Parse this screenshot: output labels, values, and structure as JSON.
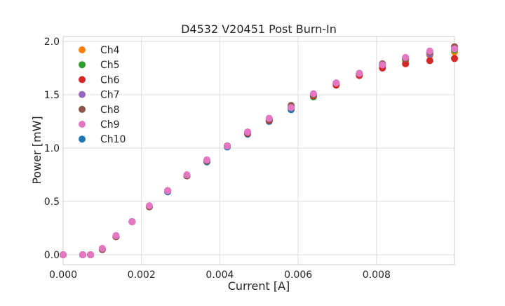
{
  "chart_data": {
    "type": "scatter",
    "title": "D4532 V20451 Post Burn-In",
    "xlabel": "Current [A]",
    "ylabel": "Power [mW]",
    "xlim": [
      0,
      0.00999
    ],
    "ylim": [
      -0.092,
      2.046
    ],
    "grid": true,
    "legend_placement": "top-left",
    "x_ticks": [
      0,
      0.002,
      0.004,
      0.006,
      0.008
    ],
    "x_tick_labels": [
      "0.000",
      "0.002",
      "0.004",
      "0.006",
      "0.008"
    ],
    "y_ticks": [
      0,
      0.5,
      1.0,
      1.5,
      2.0
    ],
    "y_tick_labels": [
      "0.0",
      "0.5",
      "1.0",
      "1.5",
      "2.0"
    ],
    "x": [
      0,
      0.0005,
      0.0007,
      0.001,
      0.00135,
      0.00176,
      0.0022,
      0.00267,
      0.00316,
      0.00367,
      0.00419,
      0.00471,
      0.00526,
      0.00582,
      0.00639,
      0.00697,
      0.00756,
      0.00815,
      0.00874,
      0.00936,
      0.00999
    ],
    "series": [
      {
        "name": "Ch4",
        "color": "#ff7f0e",
        "values": [
          0,
          0,
          0,
          0.05,
          0.17,
          0.31,
          0.45,
          0.6,
          0.74,
          0.88,
          1.02,
          1.14,
          1.26,
          1.38,
          1.49,
          1.6,
          1.69,
          1.77,
          1.82,
          1.87,
          1.9
        ]
      },
      {
        "name": "Ch5",
        "color": "#2ca02c",
        "values": [
          0,
          0,
          0,
          0.05,
          0.17,
          0.31,
          0.45,
          0.6,
          0.74,
          0.88,
          1.02,
          1.14,
          1.26,
          1.39,
          1.48,
          1.6,
          1.69,
          1.77,
          1.83,
          1.88,
          1.92
        ]
      },
      {
        "name": "Ch6",
        "color": "#d62728",
        "values": [
          0,
          0,
          0,
          0.05,
          0.17,
          0.31,
          0.45,
          0.6,
          0.74,
          0.88,
          1.02,
          1.14,
          1.26,
          1.38,
          1.49,
          1.59,
          1.68,
          1.75,
          1.79,
          1.82,
          1.84
        ]
      },
      {
        "name": "Ch7",
        "color": "#9467bd",
        "values": [
          0,
          0,
          0,
          0.05,
          0.17,
          0.31,
          0.45,
          0.6,
          0.74,
          0.88,
          1.02,
          1.15,
          1.27,
          1.39,
          1.5,
          1.61,
          1.7,
          1.78,
          1.84,
          1.88,
          1.93
        ]
      },
      {
        "name": "Ch8",
        "color": "#8c564b",
        "values": [
          0,
          0,
          0,
          0.05,
          0.17,
          0.31,
          0.45,
          0.6,
          0.74,
          0.88,
          1.02,
          1.15,
          1.27,
          1.4,
          1.5,
          1.61,
          1.7,
          1.79,
          1.84,
          1.9,
          1.95
        ]
      },
      {
        "name": "Ch9",
        "color": "#e377c2",
        "values": [
          0,
          0,
          0,
          0.06,
          0.18,
          0.31,
          0.46,
          0.6,
          0.75,
          0.89,
          1.02,
          1.15,
          1.28,
          1.38,
          1.51,
          1.61,
          1.7,
          1.78,
          1.85,
          1.91,
          1.93
        ]
      },
      {
        "name": "Ch10",
        "color": "#1f77b4",
        "values": [
          0,
          0,
          0,
          0.05,
          0.17,
          0.31,
          0.45,
          0.59,
          0.74,
          0.87,
          1.01,
          1.13,
          1.25,
          1.36,
          1.49,
          1.6,
          1.69,
          1.78,
          1.83,
          1.89,
          1.92
        ]
      }
    ]
  }
}
